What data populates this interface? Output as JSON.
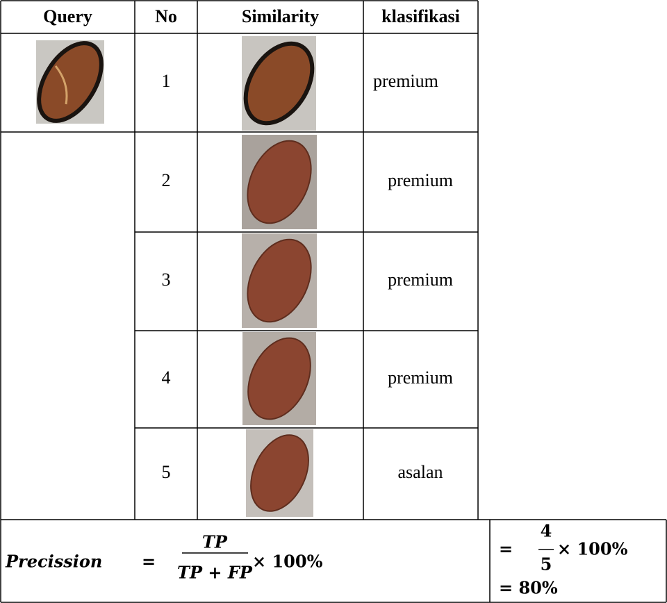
{
  "table": {
    "headers": [
      "Query",
      "No",
      "Similarity",
      "klasifikasi"
    ],
    "rows": [
      {
        "no": 1,
        "class": "premium"
      },
      {
        "no": 2,
        "class": "premium"
      },
      {
        "no": 3,
        "class": "premium"
      },
      {
        "no": 4,
        "class": "premium"
      },
      {
        "no": 5,
        "class": "asalan"
      }
    ]
  },
  "formula": {
    "label": "Precission",
    "equals": "=",
    "numerator": "TP",
    "denominator": "TP + FP",
    "factor": "× 100%"
  },
  "result": {
    "equals": "=",
    "numerator": "4",
    "denominator": "5",
    "factor": "× 100%",
    "final": "= 80%"
  }
}
